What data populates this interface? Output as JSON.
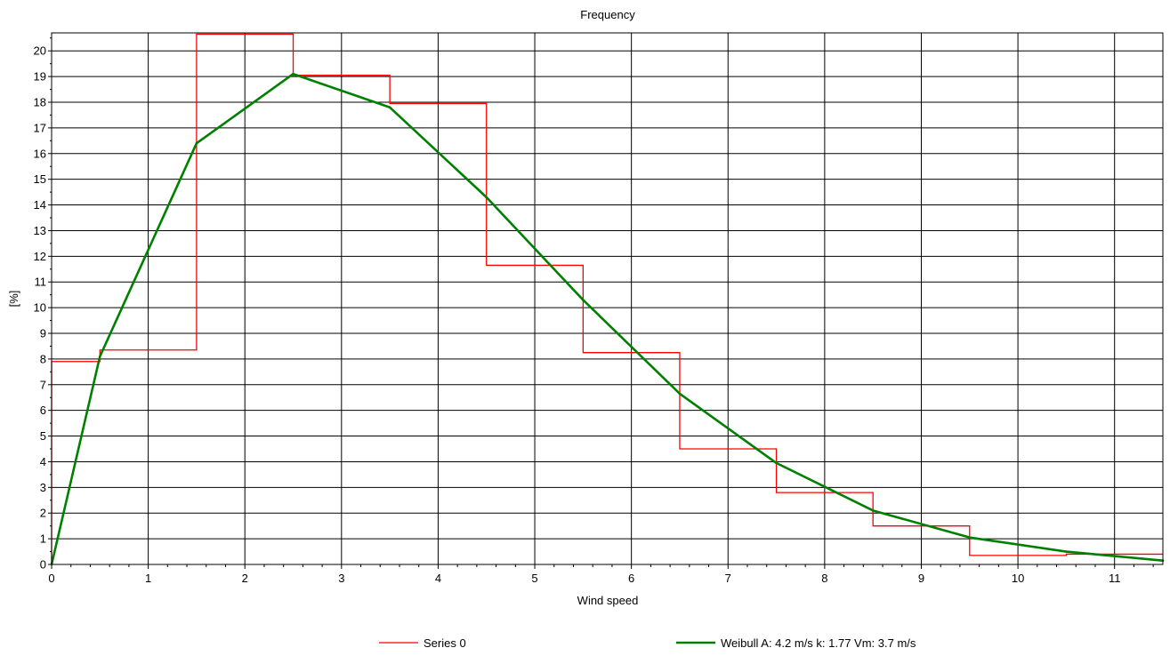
{
  "chart_data": {
    "type": "line",
    "title": "Frequency",
    "xlabel": "Wind speed",
    "ylabel": "[%]",
    "xlim": [
      0,
      11.5
    ],
    "ylim": [
      0,
      20.7
    ],
    "xticks": [
      0,
      1,
      2,
      3,
      4,
      5,
      6,
      7,
      8,
      9,
      10,
      11
    ],
    "yticks": [
      0,
      1,
      2,
      3,
      4,
      5,
      6,
      7,
      8,
      9,
      10,
      11,
      12,
      13,
      14,
      15,
      16,
      17,
      18,
      19,
      20
    ],
    "grid": true,
    "legend_position": "bottom",
    "series": [
      {
        "name": "Series 0",
        "kind": "step",
        "color": "#ff0000",
        "bins": [
          {
            "x0": 0.0,
            "x1": 0.5,
            "y": 7.9
          },
          {
            "x0": 0.5,
            "x1": 1.5,
            "y": 8.35
          },
          {
            "x0": 1.5,
            "x1": 2.5,
            "y": 20.65
          },
          {
            "x0": 2.5,
            "x1": 3.5,
            "y": 19.05
          },
          {
            "x0": 3.5,
            "x1": 4.5,
            "y": 17.95
          },
          {
            "x0": 4.5,
            "x1": 5.5,
            "y": 11.65
          },
          {
            "x0": 5.5,
            "x1": 6.5,
            "y": 8.25
          },
          {
            "x0": 6.5,
            "x1": 7.5,
            "y": 4.5
          },
          {
            "x0": 7.5,
            "x1": 8.5,
            "y": 2.8
          },
          {
            "x0": 8.5,
            "x1": 9.5,
            "y": 1.5
          },
          {
            "x0": 9.5,
            "x1": 10.5,
            "y": 0.35
          },
          {
            "x0": 10.5,
            "x1": 11.5,
            "y": 0.4
          }
        ]
      },
      {
        "name": "Weibull A: 4.2 m/s k: 1.77 Vm: 3.7 m/s",
        "kind": "line",
        "color": "#008000",
        "x": [
          0,
          0.5,
          1.5,
          2.5,
          3.5,
          4.5,
          5.5,
          6.5,
          7.5,
          8.5,
          9.5,
          10.5,
          11.5
        ],
        "y": [
          0,
          8.1,
          16.4,
          19.1,
          17.8,
          14.3,
          10.3,
          6.65,
          3.95,
          2.1,
          1.05,
          0.5,
          0.15
        ]
      }
    ]
  }
}
